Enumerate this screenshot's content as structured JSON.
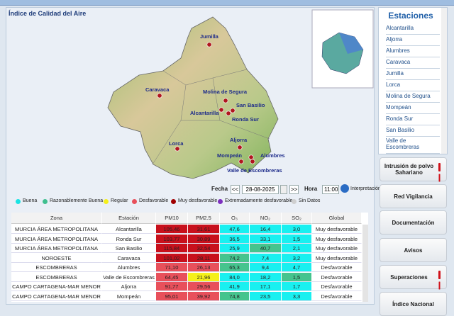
{
  "header": {
    "title": "Índice de Calidad del Aire"
  },
  "map": {
    "stations": [
      "Jumilla",
      "Caravaca",
      "Molina de Segura",
      "San Basilio",
      "Alcantarilla",
      "Ronda Sur",
      "Lorca",
      "Aljorra",
      "Alumbres",
      "Mompeán",
      "Valle de Escombreras"
    ]
  },
  "controls": {
    "date_label": "Fecha",
    "prev": "<<",
    "date": "28-08-2025",
    "next": ">>",
    "hour_label": "Hora",
    "hour": "11:00",
    "help": "Interpretación"
  },
  "legend": [
    "Buena",
    "Razonablemente Buena",
    "Regular",
    "Desfavorable",
    "Muy desfavorable",
    "Extremadamente desfavorable",
    "Sin Datos"
  ],
  "table": {
    "columns": [
      "Zona",
      "Estación",
      "PM10",
      "PM2.5",
      "O₃",
      "NO₂",
      "SO₂",
      "Global"
    ],
    "rows": [
      [
        "MURCIA ÁREA METROPOLITANA",
        "Alcantarilla",
        "105,46",
        "31,61",
        "47,6",
        "16,4",
        "3,0",
        "Muy desfavorable"
      ],
      [
        "MURCIA ÁREA METROPOLITANA",
        "Ronda Sur",
        "103,77",
        "30,89",
        "36,5",
        "33,1",
        "1,5",
        "Muy desfavorable"
      ],
      [
        "MURCIA ÁREA METROPOLITANA",
        "San Basilio",
        "115,84",
        "32,54",
        "25,9",
        "40,7",
        "2,1",
        "Muy desfavorable"
      ],
      [
        "NOROESTE",
        "Caravaca",
        "101,02",
        "28,11",
        "74,2",
        "7,4",
        "3,2",
        "Muy desfavorable"
      ],
      [
        "ESCOMBRERAS",
        "Alumbres",
        "71,10",
        "26,13",
        "65,3",
        "9,4",
        "4,7",
        "Desfavorable"
      ],
      [
        "ESCOMBRERAS",
        "Valle de Escombreras",
        "64,45",
        "21,96",
        "84,0",
        "18,2",
        "1,5",
        "Desfavorable"
      ],
      [
        "CAMPO CARTAGENA-MAR MENOR",
        "Aljorra",
        "91,77",
        "29,56",
        "41,9",
        "17,1",
        "1,7",
        "Desfavorable"
      ],
      [
        "CAMPO CARTAGENA-MAR MENOR",
        "Mompeán",
        "95,01",
        "39,92",
        "74,8",
        "23,5",
        "3,3",
        "Desfavorable"
      ]
    ]
  },
  "sidebar": {
    "title": "Estaciones",
    "stations": [
      "Alcantarilla",
      "Aljorra",
      "Alumbres",
      "Caravaca",
      "Jumilla",
      "Lorca",
      "Molina de Segura",
      "Mompeán",
      "Ronda Sur",
      "San Basilio",
      "Valle de Escombreras"
    ],
    "buttons": [
      "Intrusión de polvo Sahariano",
      "Red Vigilancia",
      "Documentación",
      "Avisos",
      "Superaciones",
      "Índice Nacional"
    ]
  }
}
